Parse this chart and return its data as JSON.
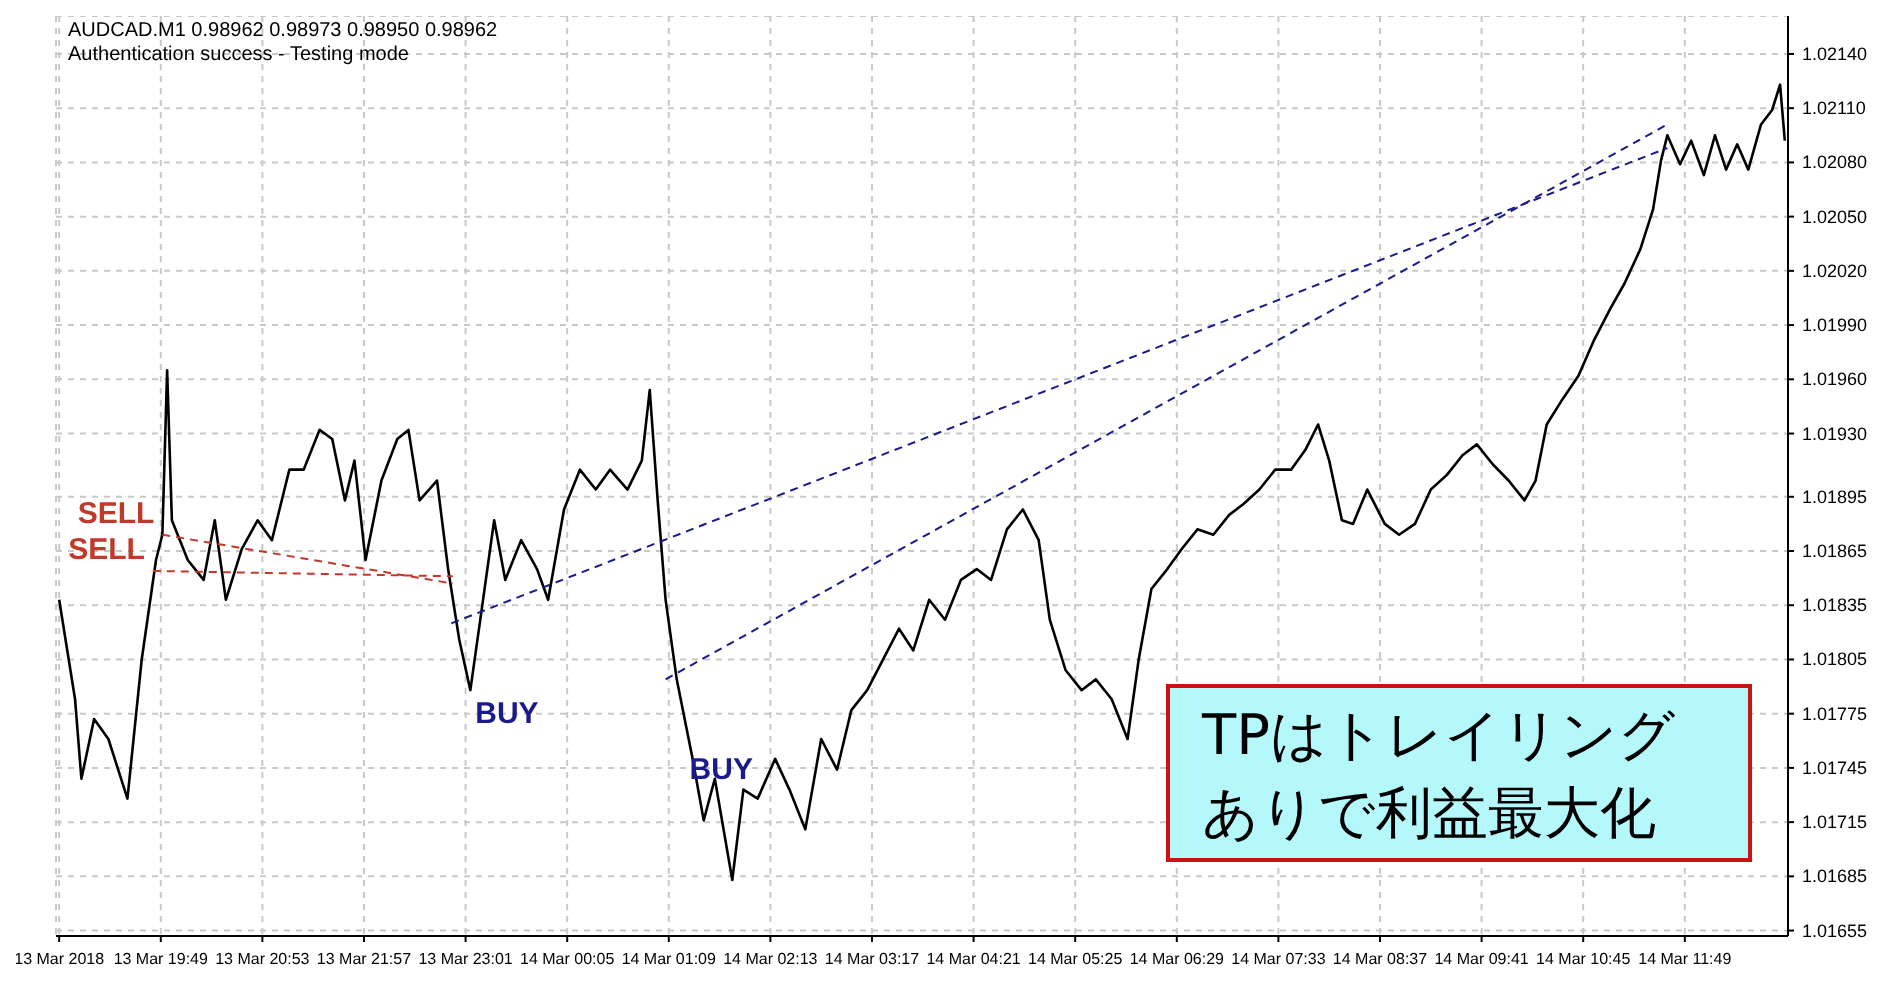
{
  "chart_data": {
    "type": "line",
    "title": "AUDCAD.M1 0.98962 0.98973 0.98950 0.98962",
    "subtitle": "Authentication success - Testing mode",
    "xlim": [
      "2018-03-13T18:43",
      "2018-03-14T12:54"
    ],
    "xticks": [
      {
        "value": "2018-03-13T18:45",
        "label": "13 Mar 2018"
      },
      {
        "value": "2018-03-13T19:49",
        "label": "13 Mar 19:49"
      },
      {
        "value": "2018-03-13T20:53",
        "label": "13 Mar 20:53"
      },
      {
        "value": "2018-03-13T21:57",
        "label": "13 Mar 21:57"
      },
      {
        "value": "2018-03-13T23:01",
        "label": "13 Mar 23:01"
      },
      {
        "value": "2018-03-14T00:05",
        "label": "14 Mar 00:05"
      },
      {
        "value": "2018-03-14T01:09",
        "label": "14 Mar 01:09"
      },
      {
        "value": "2018-03-14T02:13",
        "label": "14 Mar 02:13"
      },
      {
        "value": "2018-03-14T03:17",
        "label": "14 Mar 03:17"
      },
      {
        "value": "2018-03-14T04:21",
        "label": "14 Mar 04:21"
      },
      {
        "value": "2018-03-14T05:25",
        "label": "14 Mar 05:25"
      },
      {
        "value": "2018-03-14T06:29",
        "label": "14 Mar 06:29"
      },
      {
        "value": "2018-03-14T07:33",
        "label": "14 Mar 07:33"
      },
      {
        "value": "2018-03-14T08:37",
        "label": "14 Mar 08:37"
      },
      {
        "value": "2018-03-14T09:41",
        "label": "14 Mar 09:41"
      },
      {
        "value": "2018-03-14T10:45",
        "label": "14 Mar 10:45"
      },
      {
        "value": "2018-03-14T11:49",
        "label": "14 Mar 11:49"
      }
    ],
    "ylim": [
      1.01652,
      1.02161
    ],
    "yticks": [
      {
        "value": 1.0214,
        "label": "1.02140"
      },
      {
        "value": 1.0211,
        "label": "1.02110"
      },
      {
        "value": 1.0208,
        "label": "1.02080"
      },
      {
        "value": 1.0205,
        "label": "1.02050"
      },
      {
        "value": 1.0202,
        "label": "1.02020"
      },
      {
        "value": 1.0199,
        "label": "1.01990"
      },
      {
        "value": 1.0196,
        "label": "1.01960"
      },
      {
        "value": 1.0193,
        "label": "1.01930"
      },
      {
        "value": 1.01895,
        "label": "1.01895"
      },
      {
        "value": 1.01865,
        "label": "1.01865"
      },
      {
        "value": 1.01835,
        "label": "1.01835"
      },
      {
        "value": 1.01805,
        "label": "1.01805"
      },
      {
        "value": 1.01775,
        "label": "1.01775"
      },
      {
        "value": 1.01745,
        "label": "1.01745"
      },
      {
        "value": 1.01715,
        "label": "1.01715"
      },
      {
        "value": 1.01685,
        "label": "1.01685"
      },
      {
        "value": 1.01655,
        "label": "1.01655"
      }
    ],
    "grid": true,
    "series": [
      {
        "color": "#000000",
        "line_style": "solid",
        "x": [
          "2018-03-13T18:45",
          "2018-03-13T18:55",
          "2018-03-13T18:59",
          "2018-03-13T19:07",
          "2018-03-13T19:16",
          "2018-03-13T19:28",
          "2018-03-13T19:37",
          "2018-03-13T19:46",
          "2018-03-13T19:50",
          "2018-03-13T19:53",
          "2018-03-13T19:56",
          "2018-03-13T20:06",
          "2018-03-13T20:16",
          "2018-03-13T20:23",
          "2018-03-13T20:30",
          "2018-03-13T20:40",
          "2018-03-13T20:50",
          "2018-03-13T20:59",
          "2018-03-13T21:10",
          "2018-03-13T21:19",
          "2018-03-13T21:29",
          "2018-03-13T21:37",
          "2018-03-13T21:45",
          "2018-03-13T21:51",
          "2018-03-13T21:58",
          "2018-03-13T22:08",
          "2018-03-13T22:18",
          "2018-03-13T22:25",
          "2018-03-13T22:32",
          "2018-03-13T22:43",
          "2018-03-13T22:50",
          "2018-03-13T22:57",
          "2018-03-13T23:04",
          "2018-03-13T23:12",
          "2018-03-13T23:19",
          "2018-03-13T23:26",
          "2018-03-13T23:36",
          "2018-03-13T23:46",
          "2018-03-13T23:53",
          "2018-03-14T00:03",
          "2018-03-14T00:13",
          "2018-03-14T00:23",
          "2018-03-14T00:32",
          "2018-03-14T00:43",
          "2018-03-14T00:52",
          "2018-03-14T00:57",
          "2018-03-14T01:02",
          "2018-03-14T01:07",
          "2018-03-14T01:14",
          "2018-03-14T01:24",
          "2018-03-14T01:31",
          "2018-03-14T01:38",
          "2018-03-14T01:49",
          "2018-03-14T01:56",
          "2018-03-14T02:05",
          "2018-03-14T02:16",
          "2018-03-14T02:25",
          "2018-03-14T02:35",
          "2018-03-14T02:45",
          "2018-03-14T02:55",
          "2018-03-14T03:04",
          "2018-03-14T03:14",
          "2018-03-14T03:24",
          "2018-03-14T03:34",
          "2018-03-14T03:43",
          "2018-03-14T03:53",
          "2018-03-14T04:03",
          "2018-03-14T04:13",
          "2018-03-14T04:23",
          "2018-03-14T04:32",
          "2018-03-14T04:42",
          "2018-03-14T04:52",
          "2018-03-14T05:02",
          "2018-03-14T05:09",
          "2018-03-14T05:19",
          "2018-03-14T05:29",
          "2018-03-14T05:38",
          "2018-03-14T05:48",
          "2018-03-14T05:58",
          "2018-03-14T06:05",
          "2018-03-14T06:13",
          "2018-03-14T06:23",
          "2018-03-14T06:32",
          "2018-03-14T06:42",
          "2018-03-14T06:52",
          "2018-03-14T07:02",
          "2018-03-14T07:11",
          "2018-03-14T07:21",
          "2018-03-14T07:31",
          "2018-03-14T07:41",
          "2018-03-14T07:50",
          "2018-03-14T07:58",
          "2018-03-14T08:05",
          "2018-03-14T08:13",
          "2018-03-14T08:20",
          "2018-03-14T08:29",
          "2018-03-14T08:40",
          "2018-03-14T08:49",
          "2018-03-14T08:59",
          "2018-03-14T09:09",
          "2018-03-14T09:19",
          "2018-03-14T09:29",
          "2018-03-14T09:38",
          "2018-03-14T09:48",
          "2018-03-14T09:58",
          "2018-03-14T10:08",
          "2018-03-14T10:15",
          "2018-03-14T10:22",
          "2018-03-14T10:32",
          "2018-03-14T10:42",
          "2018-03-14T10:52",
          "2018-03-14T11:02",
          "2018-03-14T11:11",
          "2018-03-14T11:21",
          "2018-03-14T11:29",
          "2018-03-14T11:34",
          "2018-03-14T11:38",
          "2018-03-14T11:46",
          "2018-03-14T11:53",
          "2018-03-14T12:01",
          "2018-03-14T12:08",
          "2018-03-14T12:15",
          "2018-03-14T12:22",
          "2018-03-14T12:29",
          "2018-03-14T12:37",
          "2018-03-14T12:44",
          "2018-03-14T12:49",
          "2018-03-14T12:52"
        ],
        "values": [
          1.01838,
          1.01783,
          1.01739,
          1.01772,
          1.01761,
          1.01728,
          1.01805,
          1.0186,
          1.01874,
          1.01965,
          1.01882,
          1.0186,
          1.01849,
          1.01882,
          1.01838,
          1.01866,
          1.01882,
          1.01871,
          1.0191,
          1.0191,
          1.01932,
          1.01927,
          1.01893,
          1.01915,
          1.0186,
          1.01904,
          1.01927,
          1.01932,
          1.01893,
          1.01904,
          1.01855,
          1.01816,
          1.01788,
          1.01838,
          1.01882,
          1.01849,
          1.01871,
          1.01855,
          1.01838,
          1.01888,
          1.0191,
          1.01899,
          1.0191,
          1.01899,
          1.01915,
          1.01954,
          1.01893,
          1.01838,
          1.01794,
          1.0175,
          1.01716,
          1.01739,
          1.01683,
          1.01733,
          1.01728,
          1.0175,
          1.01733,
          1.01711,
          1.01761,
          1.01744,
          1.01777,
          1.01788,
          1.01805,
          1.01822,
          1.0181,
          1.01838,
          1.01827,
          1.01849,
          1.01855,
          1.01849,
          1.01877,
          1.01888,
          1.01871,
          1.01827,
          1.01799,
          1.01788,
          1.01794,
          1.01783,
          1.01761,
          1.01805,
          1.01844,
          1.01855,
          1.01866,
          1.01877,
          1.01874,
          1.01885,
          1.01891,
          1.01899,
          1.0191,
          1.0191,
          1.01921,
          1.01935,
          1.01915,
          1.01882,
          1.0188,
          1.01899,
          1.0188,
          1.01874,
          1.0188,
          1.01899,
          1.01907,
          1.01918,
          1.01924,
          1.01913,
          1.01904,
          1.01893,
          1.01904,
          1.01935,
          1.01949,
          1.01962,
          1.01982,
          1.01999,
          1.02013,
          1.02032,
          1.02054,
          1.02081,
          1.02095,
          1.02079,
          1.02092,
          1.02073,
          1.02095,
          1.02076,
          1.0209,
          1.02076,
          1.02101,
          1.02109,
          1.02123,
          1.02092
        ]
      },
      {
        "color": "#c0392b",
        "line_style": "dashed",
        "x": [
          "2018-03-13T19:50",
          "2018-03-13T22:53"
        ],
        "values": [
          1.01874,
          1.01847
        ]
      },
      {
        "color": "#c0392b",
        "line_style": "dashed",
        "x": [
          "2018-03-13T19:44",
          "2018-03-13T22:53"
        ],
        "values": [
          1.01854,
          1.01851
        ]
      },
      {
        "color": "#1a1a8c",
        "line_style": "dashed",
        "x": [
          "2018-03-13T22:52",
          "2018-03-14T11:38"
        ],
        "values": [
          1.01825,
          1.02088
        ]
      },
      {
        "color": "#1a1a8c",
        "line_style": "dashed",
        "x": [
          "2018-03-14T01:07",
          "2018-03-14T11:38"
        ],
        "values": [
          1.01794,
          1.02101
        ]
      }
    ],
    "annotations": [
      {
        "text": "SELL",
        "x": "2018-03-13T19:50",
        "y": 1.01874
      },
      {
        "text": "SELL",
        "x": "2018-03-13T19:44",
        "y": 1.01854
      },
      {
        "text": "BUY",
        "x": "2018-03-13T22:52",
        "y": 1.01825
      },
      {
        "text": "BUY",
        "x": "2018-03-14T01:07",
        "y": 1.01794
      },
      "TPはトレイリングありで利益最大化"
    ]
  }
}
